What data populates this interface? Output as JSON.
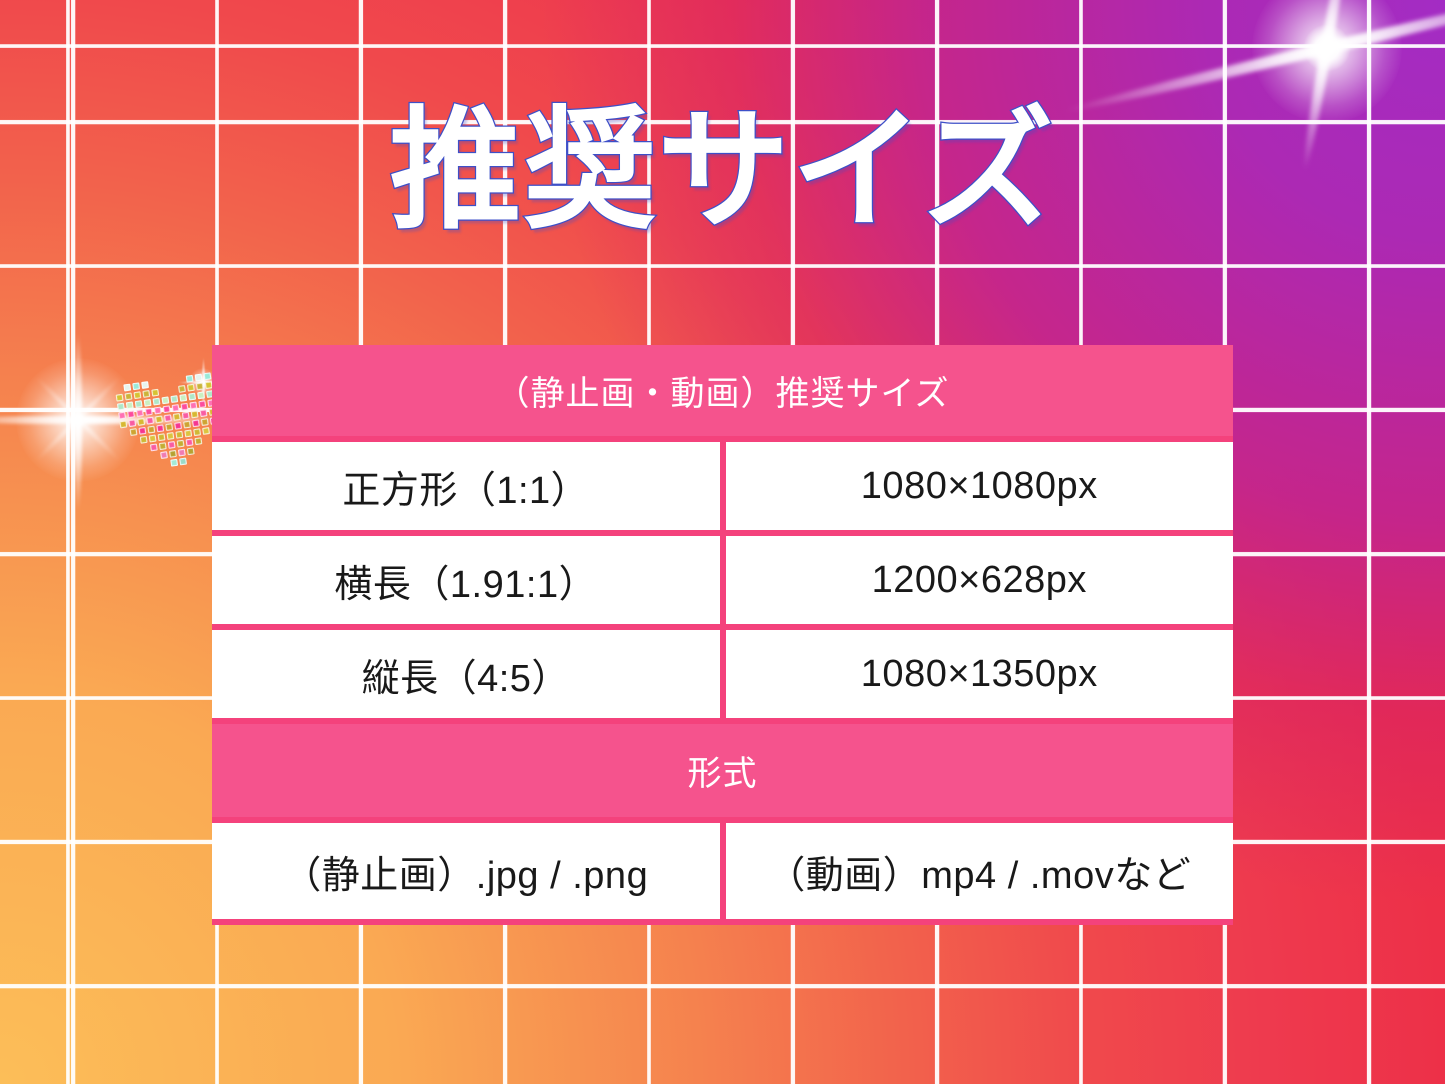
{
  "title": "推奨サイズ",
  "table": {
    "header": "（静止画・動画）推奨サイズ",
    "rows": [
      {
        "label": "正方形（1:1）",
        "value": "1080×1080px"
      },
      {
        "label": "横長（1.91:1）",
        "value": "1200×628px"
      },
      {
        "label": "縦長（4:5）",
        "value": "1080×1350px"
      }
    ],
    "format_header": "形式",
    "format_row": {
      "label": "（静止画）.jpg / .png",
      "value": "（動画）mp4 / .movなど"
    }
  },
  "colors": {
    "gradient_stops": [
      "#FCBE58",
      "#F5814E",
      "#F0494C",
      "#ED3048",
      "#D21C6E",
      "#C8207F",
      "#A32CC4"
    ],
    "grid_line": "#FFFFFF",
    "table_header_bg": "#F5538D",
    "table_border_pink": "#F4427C",
    "cell_bg": "#FFFFFF",
    "cell_text": "#191919",
    "title_fill": "#FFFFFF",
    "title_outline": "#3E50C8"
  },
  "decorations": {
    "sparkles": [
      "lens-flare-top-right",
      "lens-flare-left",
      "mini-sparkle-heart"
    ],
    "heart": {
      "pattern": [
        ".XXX....XXX.",
        "XXXXX..XXXXX",
        "XXXXXXXXXXXX",
        "XXXXXXXXXXXX",
        "XXXXXXXXXXXX",
        ".XXXXXXXXXX.",
        "..XXXXXXXX..",
        "...XXXXXX...",
        "....XXXX....",
        ".....XX....."
      ],
      "rows_per_band": 3,
      "bands": [
        [
          "#9FE8D8",
          "#CDEEC3",
          "#C9B445",
          "#E8F4EE",
          "#B3E6C9",
          "#D4C23F"
        ],
        [
          "#F04F9A",
          "#E83A8C",
          "#D4B83E",
          "#F773B0",
          "#C9A43C",
          "#EE5F9F"
        ],
        [
          "#CDB83F",
          "#B3A23C",
          "#EE5F9F",
          "#D9C44A",
          "#E87FB0",
          "#C2AD3E"
        ],
        [
          "#A8E8D4",
          "#C4ECDC",
          "#CDB845",
          "#9FDAC8"
        ]
      ]
    }
  }
}
